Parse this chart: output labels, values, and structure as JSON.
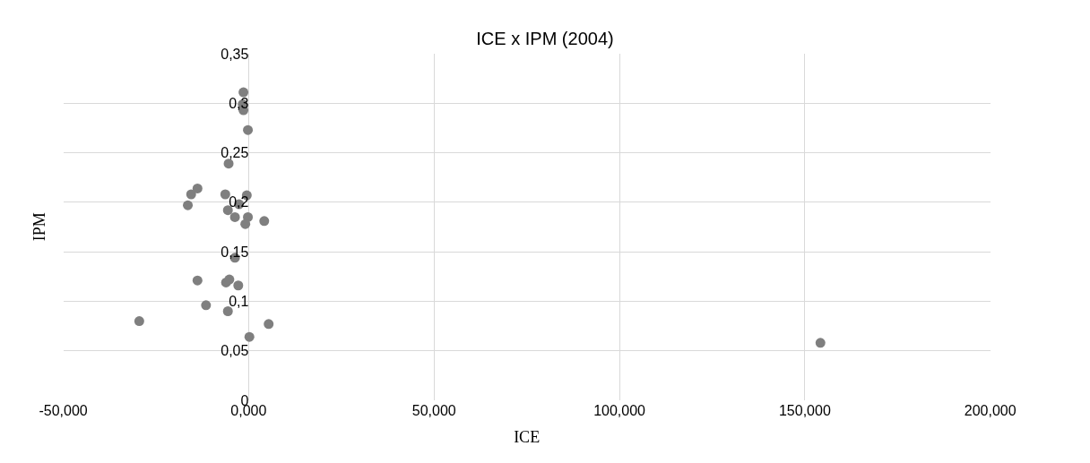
{
  "chart_data": {
    "type": "scatter",
    "title": "ICE x IPM (2004)",
    "xlabel": "ICE",
    "ylabel": "IPM",
    "x": [
      -1.4,
      -1.6,
      -1.4,
      -0.2,
      -5.4,
      -16.4,
      -15.5,
      -13.8,
      -6.3,
      -5.6,
      -2.6,
      -3.7,
      -0.5,
      -0.2,
      -0.9,
      4.2,
      -3.7,
      -13.8,
      -6.1,
      -5.2,
      -2.8,
      -11.5,
      -5.6,
      -29.5,
      0.2,
      5.4,
      154.2
    ],
    "series": [
      {
        "color": "#7f7f7f",
        "values": [
          0.311,
          0.299,
          0.293,
          0.273,
          0.239,
          0.197,
          0.208,
          0.214,
          0.208,
          0.192,
          0.198,
          0.185,
          0.207,
          0.185,
          0.178,
          0.181,
          0.144,
          0.121,
          0.119,
          0.122,
          0.116,
          0.096,
          0.09,
          0.08,
          0.064,
          0.077,
          0.058
        ]
      }
    ],
    "xlim": [
      -50,
      200
    ],
    "xticks": [
      {
        "value": -50,
        "label": "-50,000"
      },
      {
        "value": 0,
        "label": "0,000"
      },
      {
        "value": 50,
        "label": "50,000"
      },
      {
        "value": 100,
        "label": "100,000"
      },
      {
        "value": 150,
        "label": "150,000"
      },
      {
        "value": 200,
        "label": "200,000"
      }
    ],
    "ylim": [
      0,
      0.35
    ],
    "yticks": [
      0,
      {
        "value": 0.05,
        "label": "0,05"
      },
      {
        "value": 0.1,
        "label": "0,1"
      },
      {
        "value": 0.15,
        "label": "0,15"
      },
      {
        "value": 0.2,
        "label": "0,2"
      },
      {
        "value": 0.25,
        "label": "0,25"
      },
      {
        "value": 0.3,
        "label": "0,3"
      },
      {
        "value": 0.35,
        "label": "0,35"
      }
    ],
    "grid": true,
    "marker": "circle",
    "legend": false
  }
}
